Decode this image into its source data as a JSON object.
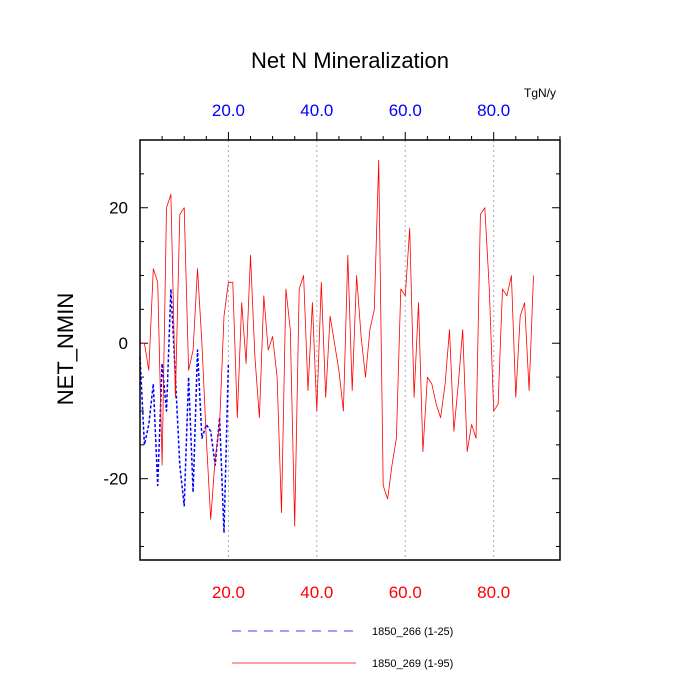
{
  "chart_data": {
    "type": "line",
    "title": "Net N Mineralization",
    "ylabel": "NET_NMIN",
    "units": "TgN/y",
    "xlim": [
      0,
      95
    ],
    "ylim": [
      -32,
      30
    ],
    "yticks": [
      {
        "value": 20,
        "label": "20"
      },
      {
        "value": 0,
        "label": "0"
      },
      {
        "value": -20,
        "label": "-20"
      }
    ],
    "xticks_bottom": [
      {
        "value": 20,
        "label": "20.0"
      },
      {
        "value": 40,
        "label": "40.0"
      },
      {
        "value": 60,
        "label": "60.0"
      },
      {
        "value": 80,
        "label": "80.0"
      }
    ],
    "xticks_top": [
      {
        "value": 20,
        "label": "20.0"
      },
      {
        "value": 40,
        "label": "40.0"
      },
      {
        "value": 60,
        "label": "60.0"
      },
      {
        "value": 80,
        "label": "80.0"
      }
    ],
    "grid_x": [
      20,
      40,
      60,
      80
    ],
    "colors": {
      "bottom_axis": "#ff0000",
      "top_axis": "#0000ff",
      "series_266": "#0000ff",
      "series_269": "#ff0000"
    },
    "series": [
      {
        "name": "1850_266 (1-25)",
        "color": "#0000ff",
        "style": "dashed",
        "x_start": 0,
        "values": [
          -2,
          -15,
          -12,
          -6,
          -21,
          -3,
          -10,
          8,
          -5,
          -18,
          -24,
          -5,
          -22,
          -1,
          -14,
          -12,
          -13,
          -18,
          -11,
          -28,
          -3
        ]
      },
      {
        "name": "1850_269 (1-95)",
        "color": "#ff0000",
        "style": "solid",
        "x_start": 0,
        "values": [
          0,
          0,
          -4,
          11,
          9,
          -18,
          20,
          22,
          -8,
          19,
          20,
          -4,
          -1,
          11,
          0,
          -14,
          -26,
          -17,
          -12,
          4,
          9,
          9,
          -11,
          6,
          -3,
          13,
          -2,
          -11,
          7,
          -1,
          1,
          -5,
          -25,
          8,
          2,
          -27,
          8,
          10,
          -7,
          6,
          -10,
          9,
          -8,
          4,
          0,
          -4,
          -10,
          13,
          -7,
          10,
          1,
          -5,
          2,
          5,
          27,
          -21,
          -23,
          -18,
          -14,
          8,
          7,
          17,
          -8,
          6,
          -16,
          -5,
          -6,
          -9,
          -11,
          -6,
          2,
          -13,
          -6,
          2,
          -16,
          -12,
          -14,
          19,
          20,
          8,
          -10,
          -9,
          8,
          7,
          10,
          -8,
          4,
          6,
          -7,
          10
        ]
      }
    ],
    "legend": [
      {
        "label": "1850_266 (1-25)",
        "color": "#0000ff",
        "style": "dashed"
      },
      {
        "label": "1850_269 (1-95)",
        "color": "#ff0000",
        "style": "solid"
      }
    ]
  }
}
